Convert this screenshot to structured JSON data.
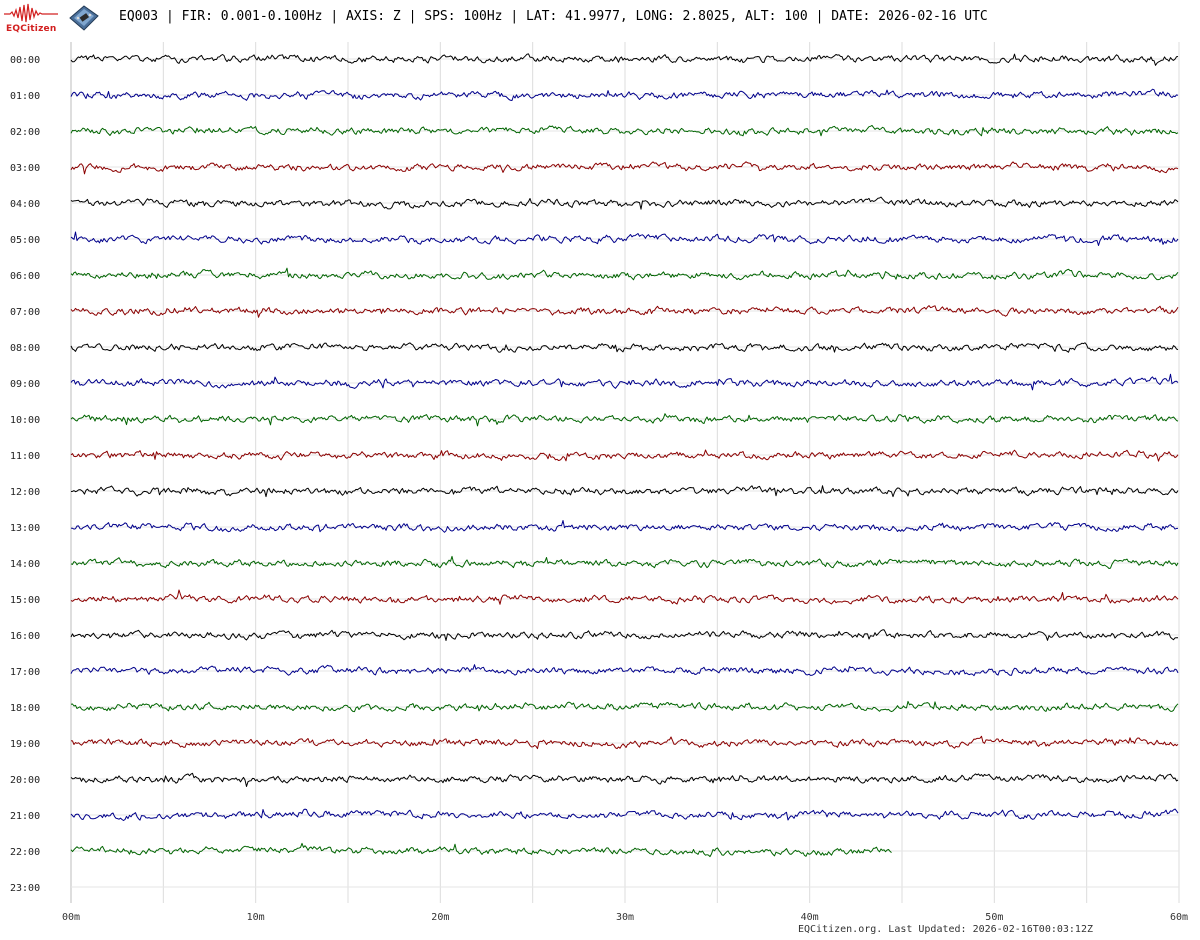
{
  "header": {
    "logo_text": "EQCitizen",
    "title": "EQ003 | FIR: 0.001-0.100Hz | AXIS: Z | SPS: 100Hz | LAT: 41.9977, LONG: 2.8025, ALT: 100 | DATE: 2026-02-16 UTC"
  },
  "footer": {
    "updated": "EQCitizen.org. Last Updated: 2026-02-16T00:03:12Z"
  },
  "chart_data": {
    "type": "line",
    "title": "",
    "xlabel": "",
    "ylabel": "",
    "x_ticks": [
      "00m",
      "10m",
      "20m",
      "30m",
      "40m",
      "50m",
      "60m"
    ],
    "xlim": [
      0,
      60
    ],
    "x_minor_gridlines_every_minutes": 5,
    "grid": true,
    "series_colors_cycle": [
      "#000000",
      "#00008b",
      "#006400",
      "#8b0000"
    ],
    "rows": [
      {
        "label": "00:00",
        "end_minute": 60
      },
      {
        "label": "01:00",
        "end_minute": 60
      },
      {
        "label": "02:00",
        "end_minute": 60
      },
      {
        "label": "03:00",
        "end_minute": 60
      },
      {
        "label": "04:00",
        "end_minute": 60
      },
      {
        "label": "05:00",
        "end_minute": 60
      },
      {
        "label": "06:00",
        "end_minute": 60
      },
      {
        "label": "07:00",
        "end_minute": 60
      },
      {
        "label": "08:00",
        "end_minute": 60
      },
      {
        "label": "09:00",
        "end_minute": 60
      },
      {
        "label": "10:00",
        "end_minute": 60
      },
      {
        "label": "11:00",
        "end_minute": 60
      },
      {
        "label": "12:00",
        "end_minute": 60
      },
      {
        "label": "13:00",
        "end_minute": 60
      },
      {
        "label": "14:00",
        "end_minute": 60
      },
      {
        "label": "15:00",
        "end_minute": 60
      },
      {
        "label": "16:00",
        "end_minute": 60
      },
      {
        "label": "17:00",
        "end_minute": 60
      },
      {
        "label": "18:00",
        "end_minute": 60
      },
      {
        "label": "19:00",
        "end_minute": 60
      },
      {
        "label": "20:00",
        "end_minute": 60
      },
      {
        "label": "21:00",
        "end_minute": 60
      },
      {
        "label": "22:00",
        "end_minute": 44.5
      },
      {
        "label": "23:00",
        "end_minute": 0
      }
    ]
  }
}
